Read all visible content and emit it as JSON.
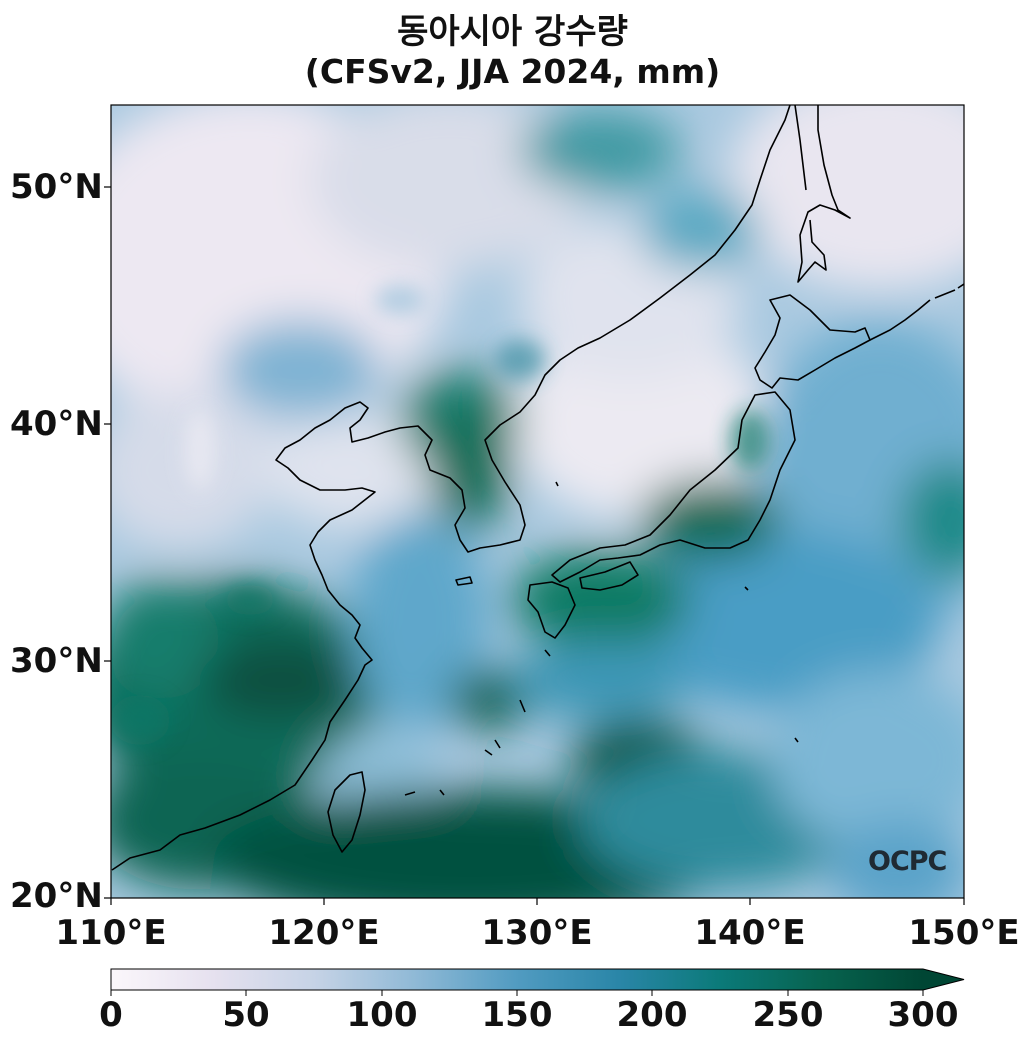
{
  "title": "동아시아 강수량",
  "subtitle": "(CFSv2, JJA 2024, mm)",
  "lat_labels": [
    "50°N",
    "40°N",
    "30°N",
    "20°N"
  ],
  "lon_labels": [
    "110°E",
    "120°E",
    "130°E",
    "140°E",
    "150°E"
  ],
  "colorbar": {
    "ticks": [
      "0",
      "50",
      "100",
      "150",
      "200",
      "250",
      "300"
    ],
    "extend": "max",
    "colormap": "white-lavender-blue-teal-dark green",
    "colors": [
      "#fbf7fb",
      "#e6e1ef",
      "#c6d3e6",
      "#8fb9d6",
      "#519bc1",
      "#2a86a8",
      "#0b7a79",
      "#07634f",
      "#004634"
    ]
  },
  "logo": "OCPC",
  "extent": {
    "lon": [
      110,
      150
    ],
    "lat": [
      20,
      53.5
    ]
  }
}
